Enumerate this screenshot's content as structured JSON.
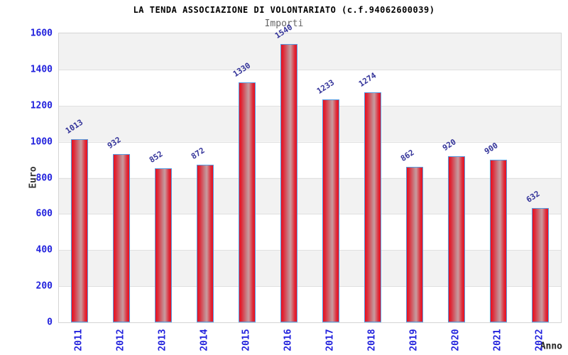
{
  "chart_data": {
    "type": "bar",
    "title": "LA TENDA ASSOCIAZIONE DI VOLONTARIATO (c.f.94062600039)",
    "subtitle": "Importi",
    "xlabel": "Anno",
    "ylabel": "Euro",
    "categories": [
      "2011",
      "2012",
      "2013",
      "2014",
      "2015",
      "2016",
      "2017",
      "2018",
      "2019",
      "2020",
      "2021",
      "2022"
    ],
    "values": [
      1013,
      932,
      852,
      872,
      1330,
      1540,
      1233,
      1274,
      862,
      920,
      900,
      632
    ],
    "ylim": [
      0,
      1600
    ],
    "ytick_step": 200,
    "legend": "none",
    "grid": "horizontal-bands",
    "colors": {
      "bar_edge_red": "#ea0e1e",
      "bar_highlight": "#c48d92",
      "bar_border_blue": "#569de2",
      "tick_text_blue": "#2222dd",
      "value_text_navy": "#333399",
      "band_gray": "#f2f2f2",
      "band_white": "#ffffff",
      "plot_border_gray": "#d4d4d4",
      "title_black": "#000000",
      "subtitle_gray": "#666666"
    }
  }
}
